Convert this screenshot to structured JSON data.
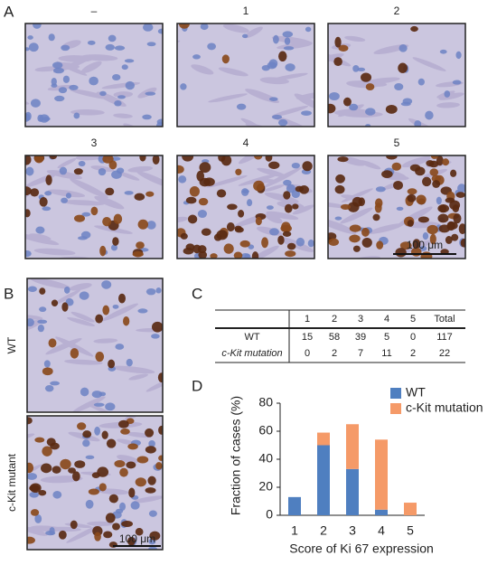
{
  "panel_a": {
    "label": "A",
    "images": [
      {
        "label": "–"
      },
      {
        "label": "1"
      },
      {
        "label": "2"
      },
      {
        "label": "3"
      },
      {
        "label": "4"
      },
      {
        "label": "5"
      }
    ],
    "scale_bar": "100 μm"
  },
  "panel_b": {
    "label": "B",
    "rows": [
      {
        "label": "WT"
      },
      {
        "label": "c-Kit mutant"
      }
    ],
    "scale_bar": "100 μm"
  },
  "panel_c": {
    "label": "C",
    "table": {
      "columns": [
        "1",
        "2",
        "3",
        "4",
        "5",
        "Total"
      ],
      "rows": [
        {
          "label": "WT",
          "values": [
            15,
            58,
            39,
            5,
            0,
            117
          ]
        },
        {
          "label": "c-Kit mutation",
          "values": [
            0,
            2,
            7,
            11,
            2,
            22
          ]
        }
      ]
    }
  },
  "panel_d": {
    "label": "D"
  },
  "chart_data": {
    "type": "stacked_bar",
    "x_label": "Score of Ki 67 expression",
    "y_label": "Fraction of cases (%)",
    "categories": [
      "1",
      "2",
      "3",
      "4",
      "5"
    ],
    "series": [
      {
        "name": "WT",
        "color": "#4f7fc0",
        "values": [
          13,
          50,
          33,
          4,
          0
        ]
      },
      {
        "name": "c-Kit mutation",
        "color": "#f59a68",
        "values": [
          0,
          9,
          32,
          50,
          9
        ]
      }
    ],
    "ylim": [
      0,
      80
    ],
    "yticks": [
      0,
      20,
      40,
      60,
      80
    ],
    "legend": "upper right"
  }
}
